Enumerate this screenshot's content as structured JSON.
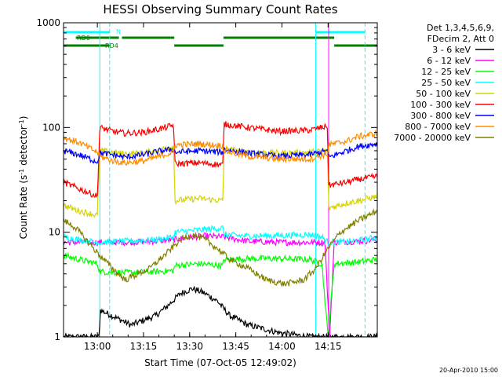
{
  "chart_data": {
    "type": "line",
    "title": "HESSI Observing Summary Count Rates",
    "xlabel": "Start Time (07-Oct-05 12:49:02)",
    "ylabel_main": "Count Rate (s",
    "ylabel_sup1": "-1",
    "ylabel_mid": " detector",
    "ylabel_sup2": "-1",
    "ylabel_end": ")",
    "footer": "20-Apr-2010 15:00",
    "y_scale": "log",
    "ylim": [
      1,
      1000
    ],
    "xlim_minutes": [
      0,
      102
    ],
    "x_ticks": [
      {
        "label": "13:00",
        "minute": 11
      },
      {
        "label": "13:15",
        "minute": 26
      },
      {
        "label": "13:30",
        "minute": 41
      },
      {
        "label": "13:45",
        "minute": 56
      },
      {
        "label": "14:00",
        "minute": 71
      },
      {
        "label": "14:15",
        "minute": 86
      }
    ],
    "y_ticks": [
      {
        "label": "1",
        "value": 1
      },
      {
        "label": "10",
        "value": 10
      },
      {
        "label": "100",
        "value": 100
      },
      {
        "label": "1000",
        "value": 1000
      }
    ],
    "legend_header": [
      "Det 1,3,4,5,6,9,",
      "FDecim 2, Att 0"
    ],
    "legend_placement": "right",
    "flags": [
      {
        "label": "N",
        "color": "#00ffff",
        "segments": [
          [
            0,
            15
          ],
          [
            82,
            98
          ]
        ]
      },
      {
        "label": "RD0",
        "color": "#008000",
        "segments": [
          [
            4,
            18
          ],
          [
            19,
            36
          ],
          [
            52,
            88
          ]
        ]
      },
      {
        "label": "RD4",
        "color": "#008000",
        "segments": [
          [
            0,
            15
          ],
          [
            36,
            52
          ],
          [
            88,
            102
          ]
        ]
      }
    ],
    "vertical_lines": [
      {
        "minute": 11.8,
        "color": "#00ffff",
        "style": "solid"
      },
      {
        "minute": 15,
        "color": "#00ffff",
        "style": "dashed"
      },
      {
        "minute": 82,
        "color": "#00ffff",
        "style": "solid"
      },
      {
        "minute": 98,
        "color": "#00ffff",
        "style": "dashed"
      },
      {
        "minute": 86.2,
        "color": "#ff00ff",
        "style": "solid"
      }
    ],
    "series": [
      {
        "name": "3 - 6 keV",
        "color": "#000000",
        "x": [
          0,
          11.5,
          12,
          22,
          30,
          34,
          38,
          42,
          46,
          50,
          54,
          60,
          70,
          80
        ],
        "y": [
          1,
          1,
          1.8,
          1.3,
          1.6,
          2,
          2.6,
          2.9,
          2.6,
          2.2,
          1.6,
          1.3,
          1.1,
          1
        ]
      },
      {
        "name": "6 - 12 keV",
        "color": "#ff00ff",
        "x": [
          0,
          11.5,
          12,
          20,
          30,
          36,
          42,
          46,
          52,
          56,
          60,
          70,
          80,
          85,
          86.5,
          88,
          96,
          102
        ],
        "y": [
          8,
          8,
          8,
          8,
          8.2,
          8.5,
          9,
          9.2,
          9,
          8.6,
          8.2,
          8,
          8,
          8,
          1,
          8,
          8.2,
          8.5
        ]
      },
      {
        "name": "12 - 25 keV",
        "color": "#00ff00",
        "x": [
          0,
          5,
          11,
          11.8,
          20,
          30,
          35.8,
          36.2,
          44,
          51.8,
          52.2,
          60,
          70,
          80,
          84,
          86,
          88,
          96,
          102
        ],
        "y": [
          6,
          5.5,
          5,
          4.2,
          4.1,
          4.2,
          4.3,
          4.8,
          5,
          4.8,
          5.5,
          5.6,
          5.6,
          5.5,
          5,
          1,
          5,
          5.2,
          5.5
        ]
      },
      {
        "name": "25 - 50 keV",
        "color": "#00ffff",
        "x": [
          0,
          5,
          11,
          11.8,
          20,
          30,
          35.8,
          36.2,
          44,
          51.8,
          52.2,
          60,
          70,
          80,
          84,
          86,
          88,
          96,
          102
        ],
        "y": [
          9,
          8.5,
          8,
          8,
          8.2,
          8.5,
          9,
          10,
          10.5,
          11,
          9.5,
          9.2,
          9.3,
          9.5,
          9,
          8,
          8,
          8.3,
          9
        ]
      },
      {
        "name": "50 - 100 keV",
        "color": "#d4d400",
        "x": [
          0,
          5,
          11,
          11.8,
          16,
          20,
          26,
          32,
          35.8,
          36.2,
          44,
          51.8,
          52.2,
          60,
          70,
          80,
          85.8,
          86.2,
          92,
          96,
          102
        ],
        "y": [
          18,
          16,
          14.5,
          60,
          58,
          56,
          57,
          62,
          66,
          20,
          21,
          20,
          63,
          58,
          57,
          58,
          60,
          17,
          19,
          20,
          22
        ]
      },
      {
        "name": "100 - 300 keV",
        "color": "#ff0000",
        "x": [
          0,
          5,
          11,
          11.8,
          16,
          20,
          26,
          32,
          35.8,
          36.2,
          44,
          51.8,
          52.2,
          60,
          70,
          80,
          85.8,
          86.2,
          92,
          96,
          102
        ],
        "y": [
          30,
          26,
          22,
          100,
          92,
          88,
          90,
          98,
          105,
          45,
          46,
          44,
          108,
          100,
          92,
          94,
          103,
          28,
          30,
          32,
          34
        ]
      },
      {
        "name": "300 - 800 keV",
        "color": "#0000ff",
        "x": [
          0,
          5,
          11,
          11.8,
          16,
          20,
          26,
          32,
          35.8,
          36.2,
          44,
          51.8,
          52.2,
          60,
          70,
          80,
          85.8,
          86.2,
          92,
          96,
          102
        ],
        "y": [
          60,
          55,
          47,
          57,
          55,
          52,
          55,
          60,
          62,
          58,
          60,
          58,
          62,
          57,
          53,
          55,
          60,
          52,
          60,
          66,
          70
        ]
      },
      {
        "name": "800 - 7000 keV",
        "color": "#ff8c00",
        "x": [
          0,
          5,
          11,
          11.8,
          16,
          20,
          26,
          32,
          35.8,
          36.2,
          44,
          51.8,
          52.2,
          60,
          70,
          80,
          85.8,
          86.2,
          92,
          96,
          102
        ],
        "y": [
          80,
          72,
          58,
          53,
          48,
          46,
          48,
          54,
          58,
          68,
          70,
          67,
          60,
          53,
          50,
          50,
          56,
          68,
          74,
          82,
          88
        ]
      },
      {
        "name": "7000 - 20000 keV",
        "color": "#808000",
        "x": [
          0,
          4,
          8,
          11.8,
          16,
          20,
          28,
          34,
          38,
          42,
          46,
          50,
          54,
          60,
          66,
          72,
          78,
          82,
          86,
          90,
          96,
          102
        ],
        "y": [
          13,
          11,
          8,
          6,
          4.5,
          3.5,
          4.5,
          6.5,
          8.5,
          9.5,
          8.5,
          7,
          5.5,
          4.5,
          3.5,
          3.2,
          3.5,
          4.5,
          7,
          10,
          13,
          16
        ]
      }
    ]
  }
}
